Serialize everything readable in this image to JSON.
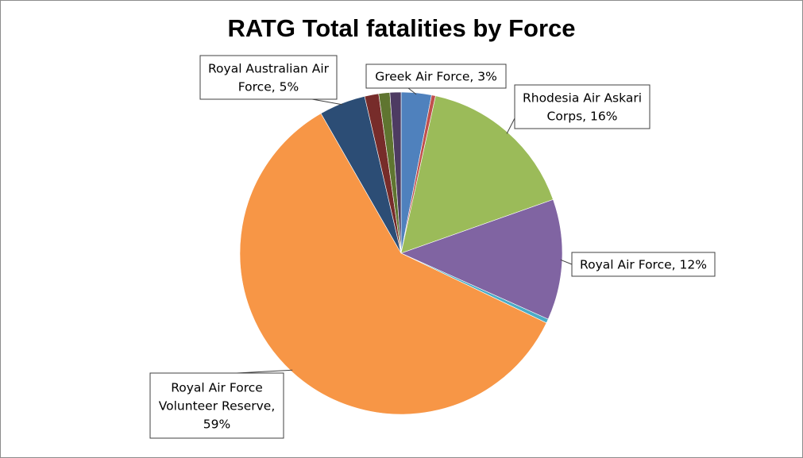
{
  "chart_data": {
    "type": "pie",
    "title": "RATG Total fatalities by Force",
    "slices": [
      {
        "name": "Greek Air Force",
        "value": 3,
        "color": "#4f81bd",
        "label_lines": [
          "Greek Air Force, 3%"
        ]
      },
      {
        "name": "",
        "value": 0.4,
        "color": "#c0504d",
        "label_lines": []
      },
      {
        "name": "Rhodesia Air Askari Corps",
        "value": 16,
        "color": "#9bbb59",
        "label_lines": [
          "Rhodesia Air Askari",
          "Corps, 16%"
        ]
      },
      {
        "name": "Royal Air Force",
        "value": 12,
        "color": "#8064a2",
        "label_lines": [
          "Royal Air Force, 12%"
        ]
      },
      {
        "name": "",
        "value": 0.4,
        "color": "#4bacc6",
        "label_lines": []
      },
      {
        "name": "Royal Air Force Volunteer Reserve",
        "value": 59,
        "color": "#f79646",
        "label_lines": [
          "Royal Air Force",
          "Volunteer Reserve,",
          "59%"
        ]
      },
      {
        "name": "Royal Australian Air Force",
        "value": 4.6,
        "color": "#2c4d75",
        "label_lines": [
          "Royal Australian Air",
          "Force, 5%"
        ]
      },
      {
        "name": "",
        "value": 1.4,
        "color": "#772c2a",
        "label_lines": []
      },
      {
        "name": "",
        "value": 1.1,
        "color": "#5f7530",
        "label_lines": []
      },
      {
        "name": "",
        "value": 1.1,
        "color": "#4d3b62",
        "label_lines": []
      }
    ],
    "legend": "none"
  }
}
